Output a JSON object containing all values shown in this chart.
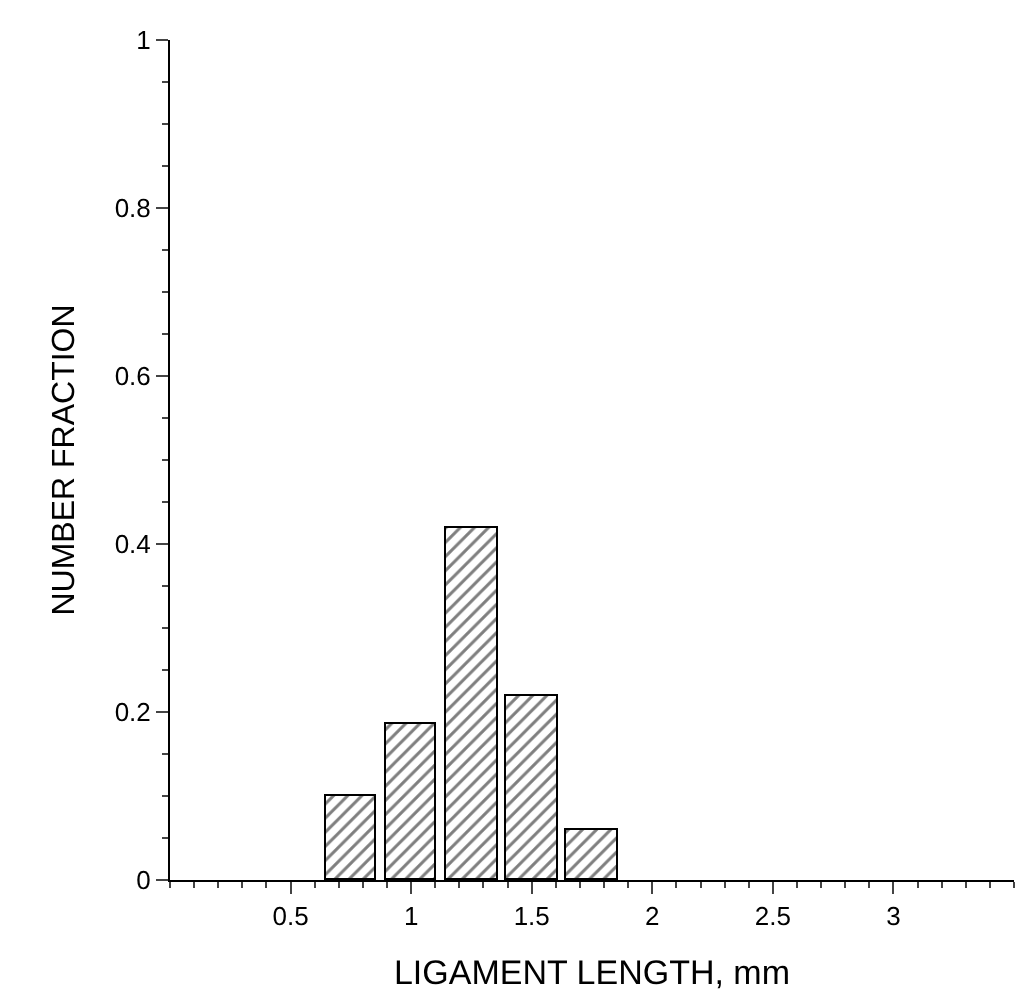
{
  "chart_data": {
    "type": "bar",
    "xlabel": "LIGAMENT LENGTH, mm",
    "ylabel": "NUMBER FRACTION",
    "x": [
      0.75,
      1,
      1.25,
      1.5,
      1.75
    ],
    "values": [
      0.1,
      0.185,
      0.42,
      0.22,
      0.06
    ],
    "color": "#000000",
    "xlim": [
      0,
      3.5
    ],
    "xticks": [
      0.5,
      1,
      1.5,
      2,
      2.5,
      3
    ],
    "ylim": [
      0,
      1
    ],
    "yticks": [
      0,
      0.2,
      0.4,
      0.6,
      0.8,
      1
    ],
    "legend": false
  }
}
